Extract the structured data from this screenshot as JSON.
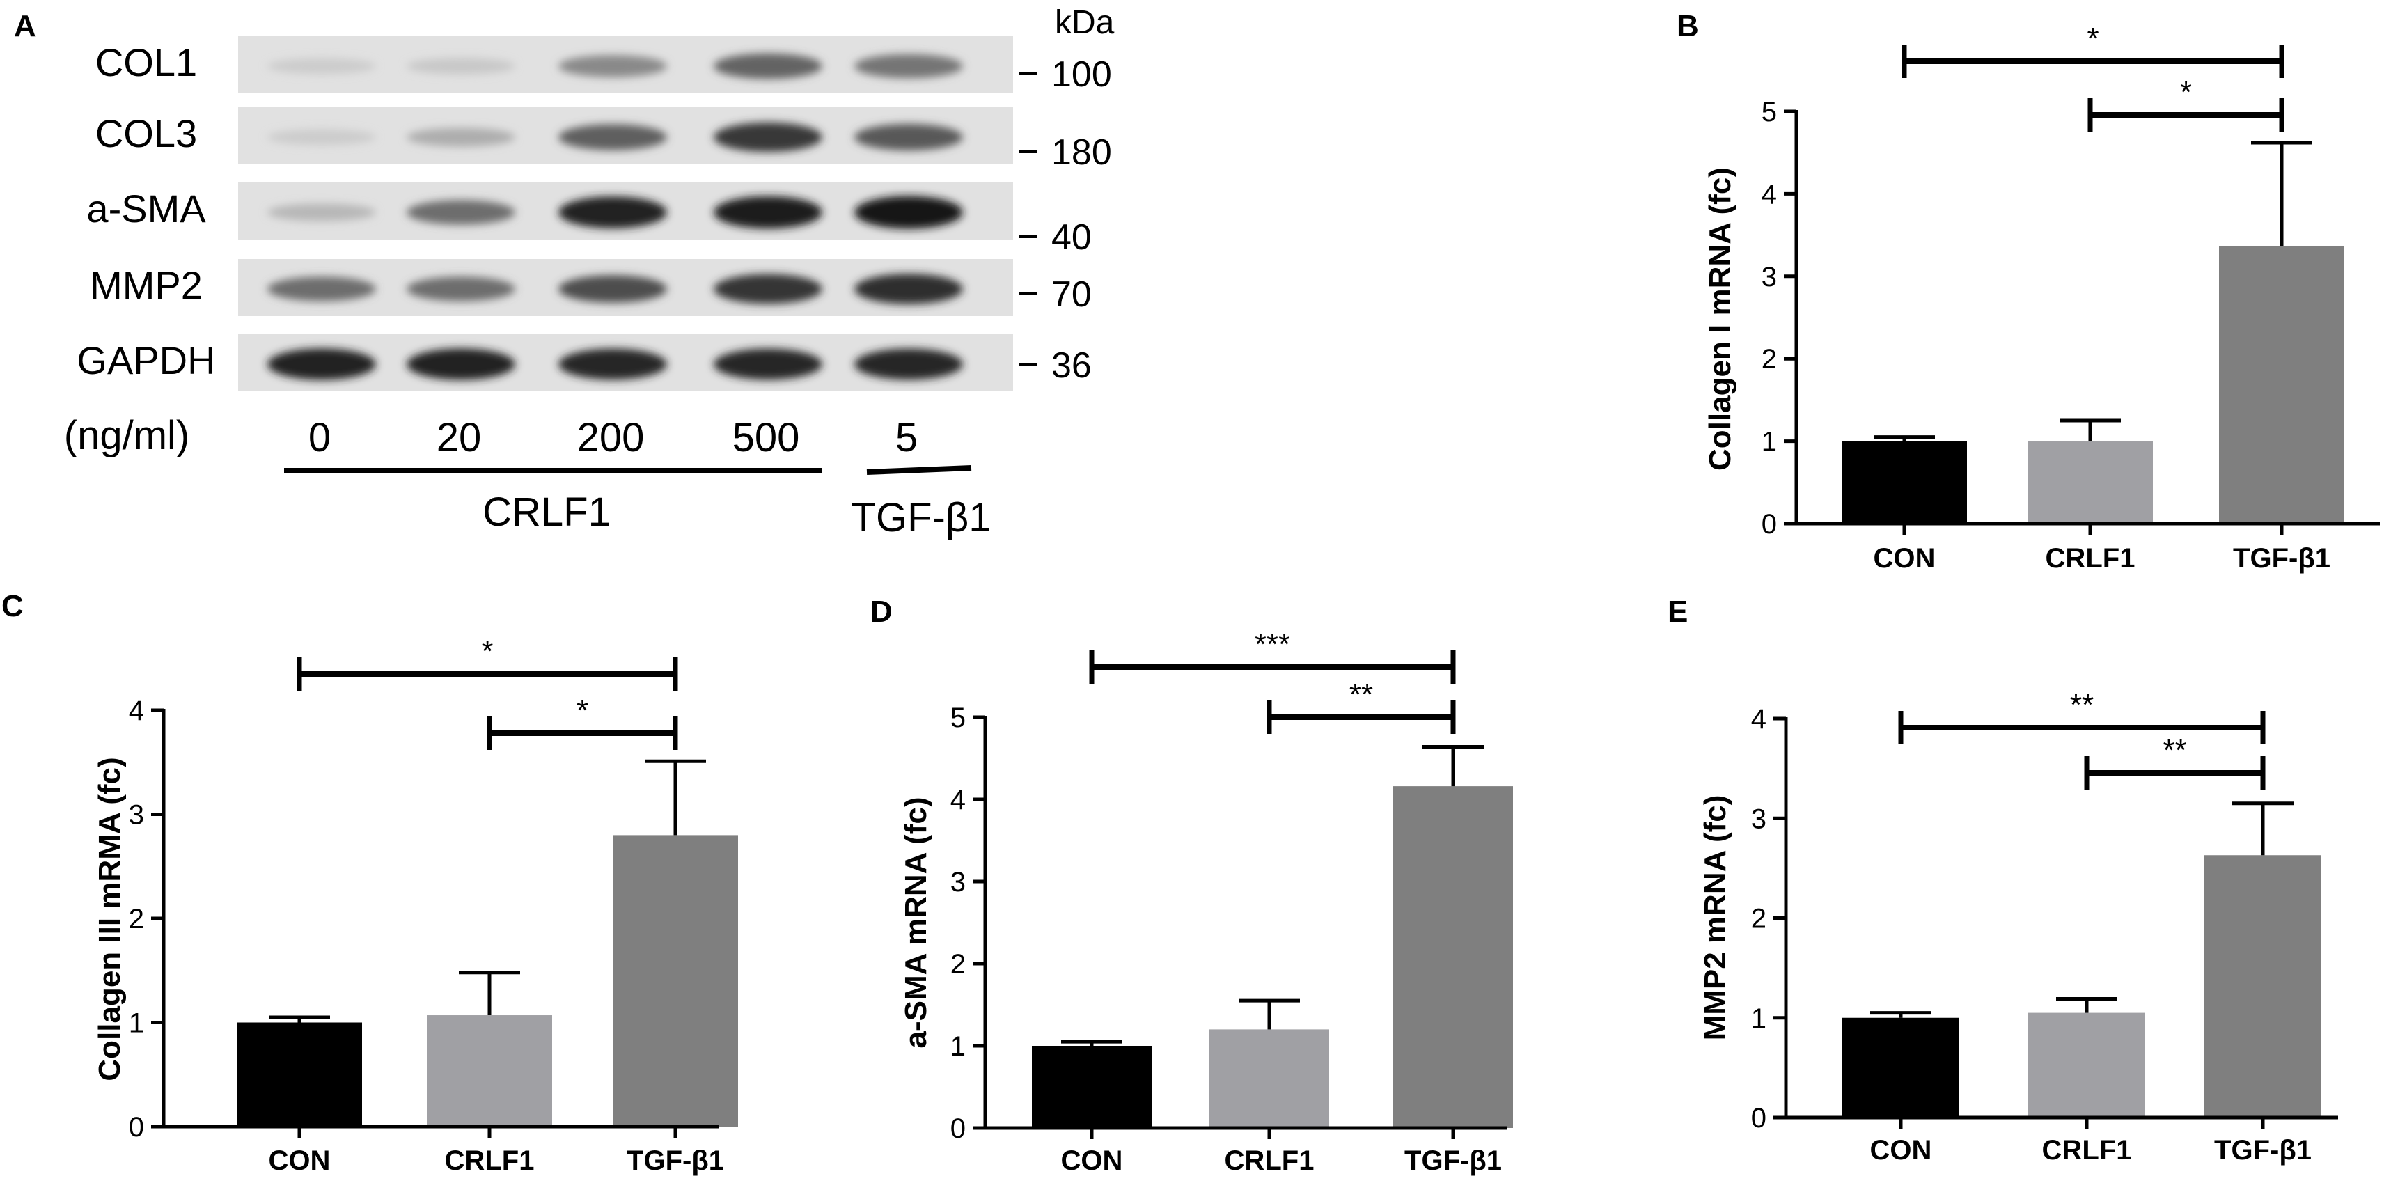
{
  "panel_a": {
    "label": "A",
    "kda_label": "kDa",
    "unit_label": "(ng/ml)",
    "lanes": [
      "0",
      "20",
      "200",
      "500",
      "5"
    ],
    "group_label_crlf1": "CRLF1",
    "group_label_tgf": "TGF-β1",
    "rows": [
      {
        "name": "COL1",
        "kda": "100",
        "intensity": [
          0.1,
          0.12,
          0.42,
          0.6,
          0.52
        ]
      },
      {
        "name": "COL3",
        "kda": "180",
        "intensity": [
          0.1,
          0.25,
          0.62,
          0.8,
          0.65
        ]
      },
      {
        "name": "a-SMA",
        "kda": "40",
        "intensity": [
          0.2,
          0.55,
          0.92,
          0.95,
          0.97
        ]
      },
      {
        "name": "MMP2",
        "kda": "70",
        "intensity": [
          0.55,
          0.55,
          0.7,
          0.82,
          0.85
        ]
      },
      {
        "name": "GAPDH",
        "kda": "36",
        "intensity": [
          0.9,
          0.9,
          0.88,
          0.88,
          0.88
        ]
      }
    ]
  },
  "chart_data": [
    {
      "panel": "B",
      "type": "bar",
      "categories": [
        "CON",
        "CRLF1",
        "TGF-β1"
      ],
      "values": [
        1.0,
        1.0,
        3.37
      ],
      "errors": [
        0.05,
        0.25,
        1.25
      ],
      "ylabel": "Collagen I mRNA (fc)",
      "ylim": [
        0,
        5
      ],
      "yticks": [
        "0",
        "1",
        "2",
        "3",
        "4",
        "5"
      ],
      "colors": [
        "#000000",
        "#a0a0a4",
        "#7f7f7f"
      ],
      "significance": [
        {
          "from": 0,
          "to": 2,
          "label": "*"
        },
        {
          "from": 1,
          "to": 2,
          "label": "*"
        }
      ]
    },
    {
      "panel": "C",
      "type": "bar",
      "categories": [
        "CON",
        "CRLF1",
        "TGF-β1"
      ],
      "values": [
        1.0,
        1.07,
        2.8
      ],
      "errors": [
        0.05,
        0.41,
        0.71
      ],
      "ylabel": "Collagen III mRMA (fc)",
      "ylim": [
        0,
        4
      ],
      "yticks": [
        "0",
        "1",
        "2",
        "3",
        "4"
      ],
      "colors": [
        "#000000",
        "#a0a0a4",
        "#7f7f7f"
      ],
      "significance": [
        {
          "from": 0,
          "to": 2,
          "label": "*"
        },
        {
          "from": 1,
          "to": 2,
          "label": "*"
        }
      ]
    },
    {
      "panel": "D",
      "type": "bar",
      "categories": [
        "CON",
        "CRLF1",
        "TGF-β1"
      ],
      "values": [
        1.0,
        1.2,
        4.16
      ],
      "errors": [
        0.05,
        0.35,
        0.48
      ],
      "ylabel": "a-SMA mRNA (fc)",
      "ylim": [
        0,
        5
      ],
      "yticks": [
        "0",
        "1",
        "2",
        "3",
        "4",
        "5"
      ],
      "colors": [
        "#000000",
        "#a0a0a4",
        "#7f7f7f"
      ],
      "significance": [
        {
          "from": 0,
          "to": 2,
          "label": "***"
        },
        {
          "from": 1,
          "to": 2,
          "label": "**"
        }
      ]
    },
    {
      "panel": "E",
      "type": "bar",
      "categories": [
        "CON",
        "CRLF1",
        "TGF-β1"
      ],
      "values": [
        1.0,
        1.05,
        2.63
      ],
      "errors": [
        0.05,
        0.14,
        0.52
      ],
      "ylabel": "MMP2 mRNA (fc)",
      "ylim": [
        0,
        4
      ],
      "yticks": [
        "0",
        "1",
        "2",
        "3",
        "4"
      ],
      "colors": [
        "#000000",
        "#a0a0a4",
        "#7f7f7f"
      ],
      "significance": [
        {
          "from": 0,
          "to": 2,
          "label": "**"
        },
        {
          "from": 1,
          "to": 2,
          "label": "**"
        }
      ]
    }
  ]
}
